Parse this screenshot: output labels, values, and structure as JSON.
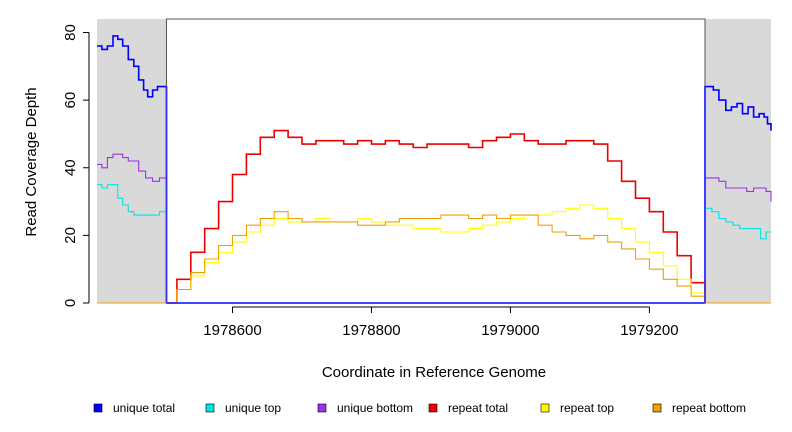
{
  "chart_data": {
    "type": "line",
    "title": "",
    "xlabel": "Coordinate in Reference Genome",
    "ylabel": "Read Coverage Depth",
    "xlim": [
      1978405,
      1979375
    ],
    "ylim": [
      0,
      84
    ],
    "x_ticks": [
      1978600,
      1978800,
      1979000,
      1979200
    ],
    "x_tick_labels": [
      "1978600",
      "1978800",
      "1979000",
      "1979200"
    ],
    "y_ticks": [
      0,
      20,
      40,
      60,
      80
    ],
    "y_tick_labels": [
      "0",
      "20",
      "40",
      "60",
      "80"
    ],
    "grid": false,
    "legend_position": "bottom",
    "shaded_regions": [
      [
        1978405,
        1978505
      ],
      [
        1979280,
        1979375
      ]
    ],
    "region_boundary": [
      1978505,
      1979280
    ],
    "boundary_line_top": 84,
    "series": [
      {
        "name": "unique total",
        "color": "#0000ff",
        "x": [
          1978405,
          1978412,
          1978420,
          1978428,
          1978435,
          1978442,
          1978450,
          1978458,
          1978465,
          1978472,
          1978478,
          1978485,
          1978492,
          1978498,
          1978505,
          1978505,
          1978506,
          1979279,
          1979280,
          1979280,
          1979285,
          1979292,
          1979300,
          1979310,
          1979318,
          1979326,
          1979334,
          1979342,
          1979350,
          1979358,
          1979365,
          1979370,
          1979375
        ],
        "y": [
          76,
          75,
          76,
          79,
          78,
          76,
          72,
          70,
          66,
          63,
          61,
          63,
          64,
          64,
          63,
          0,
          0,
          0,
          0,
          64,
          64,
          63,
          60,
          57,
          58,
          59,
          56,
          58,
          55,
          56,
          55,
          53,
          51
        ]
      },
      {
        "name": "unique top",
        "color": "#00e5e5",
        "x": [
          1978405,
          1978412,
          1978420,
          1978428,
          1978435,
          1978442,
          1978450,
          1978458,
          1978465,
          1978475,
          1978485,
          1978495,
          1978505,
          1978505,
          1978506,
          1979279,
          1979280,
          1979280,
          1979290,
          1979300,
          1979310,
          1979320,
          1979330,
          1979340,
          1979350,
          1979360,
          1979368,
          1979375
        ],
        "y": [
          35,
          34,
          35,
          35,
          31,
          29,
          27,
          26,
          26,
          26,
          26,
          27,
          28,
          0,
          0,
          0,
          0,
          28,
          27,
          25,
          24,
          23,
          22,
          22,
          22,
          19,
          21,
          21
        ]
      },
      {
        "name": "unique bottom",
        "color": "#a030f0",
        "x": [
          1978405,
          1978412,
          1978420,
          1978428,
          1978435,
          1978442,
          1978450,
          1978458,
          1978465,
          1978475,
          1978485,
          1978495,
          1978505,
          1978505,
          1978506,
          1979279,
          1979280,
          1979280,
          1979290,
          1979300,
          1979310,
          1979320,
          1979330,
          1979340,
          1979350,
          1979360,
          1979368,
          1979375
        ],
        "y": [
          41,
          40,
          43,
          44,
          44,
          43,
          42,
          42,
          39,
          37,
          36,
          37,
          36,
          0,
          0,
          0,
          0,
          37,
          37,
          36,
          34,
          34,
          34,
          33,
          34,
          34,
          33,
          30
        ]
      },
      {
        "name": "repeat total",
        "color": "#ee0000",
        "x": [
          1978505,
          1978520,
          1978540,
          1978560,
          1978580,
          1978600,
          1978620,
          1978640,
          1978660,
          1978680,
          1978700,
          1978720,
          1978740,
          1978760,
          1978780,
          1978800,
          1978820,
          1978840,
          1978860,
          1978880,
          1978900,
          1978920,
          1978940,
          1978960,
          1978980,
          1979000,
          1979020,
          1979040,
          1979060,
          1979080,
          1979100,
          1979120,
          1979140,
          1979160,
          1979180,
          1979200,
          1979220,
          1979240,
          1979260,
          1979280
        ],
        "y": [
          0,
          7,
          15,
          22,
          30,
          38,
          44,
          49,
          51,
          49,
          47,
          48,
          48,
          47,
          48,
          47,
          48,
          47,
          46,
          47,
          47,
          47,
          46,
          48,
          49,
          50,
          48,
          47,
          47,
          48,
          48,
          47,
          42,
          36,
          31,
          27,
          21,
          14,
          6,
          0
        ]
      },
      {
        "name": "repeat top",
        "color": "#ffff00",
        "x": [
          1978505,
          1978520,
          1978540,
          1978560,
          1978580,
          1978600,
          1978620,
          1978640,
          1978660,
          1978680,
          1978700,
          1978720,
          1978740,
          1978760,
          1978780,
          1978800,
          1978820,
          1978840,
          1978860,
          1978880,
          1978900,
          1978920,
          1978940,
          1978960,
          1978980,
          1979000,
          1979020,
          1979040,
          1979060,
          1979080,
          1979100,
          1979120,
          1979140,
          1979160,
          1979180,
          1979200,
          1979220,
          1979240,
          1979260,
          1979280
        ],
        "y": [
          0,
          4,
          8,
          12,
          15,
          18,
          21,
          23,
          25,
          24,
          24,
          25,
          24,
          24,
          25,
          24,
          23,
          23,
          22,
          22,
          21,
          21,
          22,
          23,
          24,
          25,
          26,
          26,
          27,
          28,
          29,
          28,
          25,
          22,
          18,
          15,
          11,
          7,
          3,
          0
        ]
      },
      {
        "name": "repeat bottom",
        "color": "#f0a000",
        "x": [
          1978405,
          1978505,
          1978520,
          1978540,
          1978560,
          1978580,
          1978600,
          1978620,
          1978640,
          1978660,
          1978680,
          1978700,
          1978720,
          1978740,
          1978760,
          1978780,
          1978800,
          1978820,
          1978840,
          1978860,
          1978880,
          1978900,
          1978920,
          1978940,
          1978960,
          1978980,
          1979000,
          1979020,
          1979040,
          1979060,
          1979080,
          1979100,
          1979120,
          1979140,
          1979160,
          1979180,
          1979200,
          1979220,
          1979240,
          1979260,
          1979280,
          1979375
        ],
        "y": [
          0,
          0,
          4,
          9,
          13,
          17,
          20,
          23,
          25,
          27,
          25,
          24,
          24,
          24,
          24,
          23,
          23,
          24,
          25,
          25,
          25,
          26,
          26,
          25,
          26,
          25,
          26,
          26,
          23,
          21,
          20,
          19,
          20,
          18,
          16,
          13,
          10,
          7,
          5,
          2,
          0,
          0
        ]
      }
    ]
  }
}
